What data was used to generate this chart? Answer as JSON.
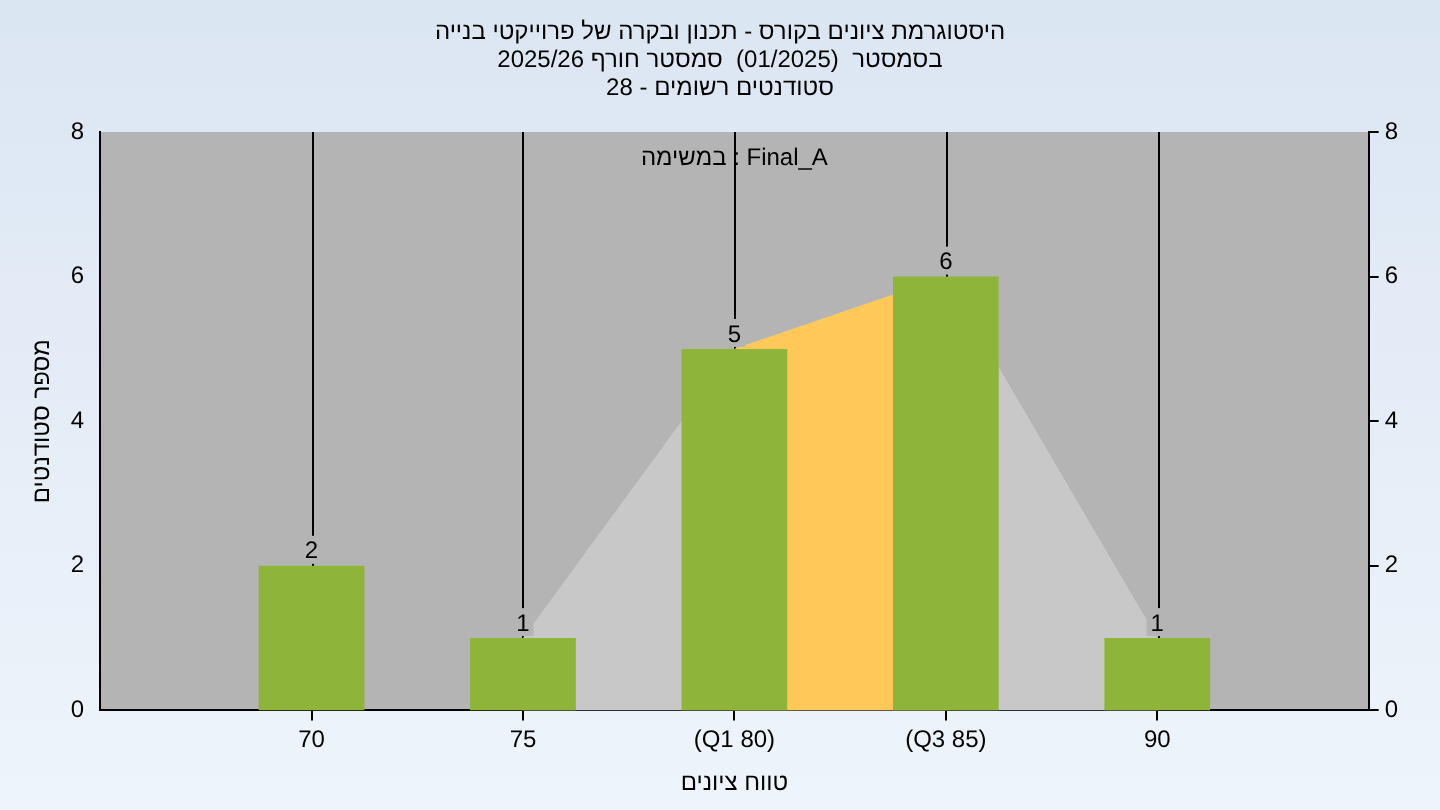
{
  "chart_data": {
    "type": "bar",
    "title": "היסטוגרמת ציונים בקורס - תכנון ובקרה של פרוייקטי בנייה",
    "subtitle": "בסמסטר  (01/2025)  סמסטר חורף 2025/26\nסטודנטים רשומים - 28",
    "xlabel": "טווח ציונים",
    "ylabel": "מספר סטודנטים",
    "categories": [
      "70",
      "75",
      "(Q1 80)",
      "(Q3 85)",
      "90"
    ],
    "series": [
      {
        "type": "area",
        "color": "#c8c8c8",
        "values": [
          null,
          1,
          5,
          6,
          1
        ]
      },
      {
        "type": "area",
        "color": "#ffc858",
        "values": [
          null,
          null,
          5,
          6,
          null
        ]
      },
      {
        "type": "bar",
        "color": "#8fb43a",
        "values": [
          2,
          1,
          5,
          6,
          1
        ],
        "value_labels": [
          "2",
          "1",
          "5",
          "6",
          "1"
        ]
      }
    ],
    "ylim": [
      0,
      8
    ],
    "yticks": [
      0,
      2,
      4,
      6,
      8
    ],
    "y2lim": [
      0,
      8
    ],
    "y2ticks": [
      0,
      2,
      4,
      6,
      8
    ],
    "annotations": [
      "במשימה : Final_A"
    ],
    "grid": "x",
    "legend": false
  }
}
